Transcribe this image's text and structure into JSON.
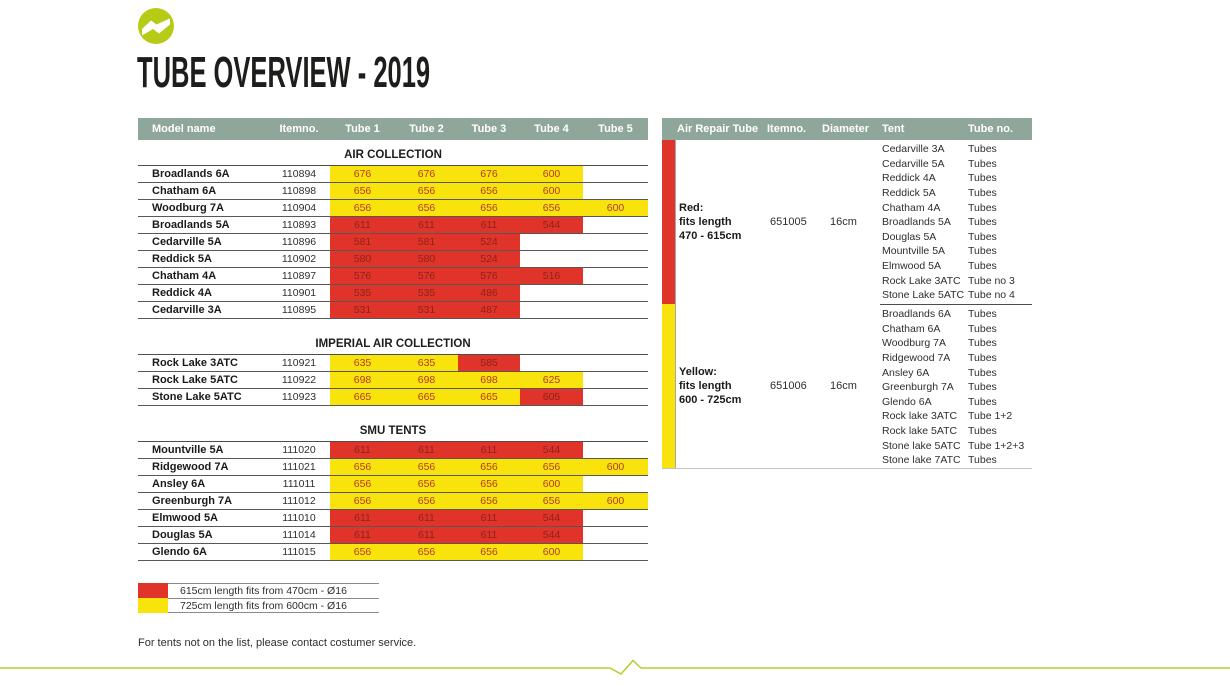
{
  "page": {
    "title": "TUBE OVERVIEW - 2019",
    "footer_note": "For tents not on the list, please contact costumer service."
  },
  "colors": {
    "header_bg": "#8fa79a",
    "yellow": "#f9e30c",
    "red": "#e0332a",
    "logo_lime": "#b5cb16",
    "divider_lime": "#b9cc33",
    "number_on_yellow": "#b23a2a",
    "number_on_red": "#8c241a"
  },
  "tube_table": {
    "headers": [
      "Model name",
      "Itemno.",
      "Tube 1",
      "Tube 2",
      "Tube 3",
      "Tube 4",
      "Tube 5"
    ],
    "sections": [
      {
        "name": "AIR COLLECTION",
        "rows": [
          {
            "model": "Broadlands 6A",
            "itemno": "110894",
            "tubes": [
              "676",
              "676",
              "676",
              "600",
              ""
            ],
            "cell_colors": [
              "y",
              "y",
              "y",
              "y",
              ""
            ]
          },
          {
            "model": "Chatham 6A",
            "itemno": "110898",
            "tubes": [
              "656",
              "656",
              "656",
              "600",
              ""
            ],
            "cell_colors": [
              "y",
              "y",
              "y",
              "y",
              ""
            ]
          },
          {
            "model": "Woodburg 7A",
            "itemno": "110904",
            "tubes": [
              "656",
              "656",
              "656",
              "656",
              "600"
            ],
            "cell_colors": [
              "y",
              "y",
              "y",
              "y",
              "y"
            ]
          },
          {
            "model": "Broadlands 5A",
            "itemno": "110893",
            "tubes": [
              "611",
              "611",
              "611",
              "544",
              ""
            ],
            "cell_colors": [
              "r",
              "r",
              "r",
              "r",
              ""
            ]
          },
          {
            "model": "Cedarville 5A",
            "itemno": "110896",
            "tubes": [
              "581",
              "581",
              "524",
              "",
              ""
            ],
            "cell_colors": [
              "r",
              "r",
              "r",
              "",
              ""
            ]
          },
          {
            "model": "Reddick 5A",
            "itemno": "110902",
            "tubes": [
              "580",
              "580",
              "524",
              "",
              ""
            ],
            "cell_colors": [
              "r",
              "r",
              "r",
              "",
              ""
            ]
          },
          {
            "model": "Chatham 4A",
            "itemno": "110897",
            "tubes": [
              "576",
              "576",
              "576",
              "516",
              ""
            ],
            "cell_colors": [
              "r",
              "r",
              "r",
              "r",
              ""
            ]
          },
          {
            "model": "Reddick 4A",
            "itemno": "110901",
            "tubes": [
              "535",
              "535",
              "486",
              "",
              ""
            ],
            "cell_colors": [
              "r",
              "r",
              "r",
              "",
              ""
            ]
          },
          {
            "model": "Cedarville 3A",
            "itemno": "110895",
            "tubes": [
              "531",
              "531",
              "487",
              "",
              ""
            ],
            "cell_colors": [
              "r",
              "r",
              "r",
              "",
              ""
            ]
          }
        ]
      },
      {
        "name": "IMPERIAL AIR COLLECTION",
        "rows": [
          {
            "model": "Rock Lake 3ATC",
            "itemno": "110921",
            "tubes": [
              "635",
              "635",
              "585",
              "",
              ""
            ],
            "cell_colors": [
              "y",
              "y",
              "r",
              "",
              ""
            ]
          },
          {
            "model": "Rock Lake 5ATC",
            "itemno": "110922",
            "tubes": [
              "698",
              "698",
              "698",
              "625",
              ""
            ],
            "cell_colors": [
              "y",
              "y",
              "y",
              "y",
              ""
            ]
          },
          {
            "model": "Stone Lake 5ATC",
            "itemno": "110923",
            "tubes": [
              "665",
              "665",
              "665",
              "605",
              ""
            ],
            "cell_colors": [
              "y",
              "y",
              "y",
              "r",
              ""
            ]
          }
        ]
      },
      {
        "name": "SMU TENTS",
        "rows": [
          {
            "model": "Mountville 5A",
            "itemno": "111020",
            "tubes": [
              "611",
              "611",
              "611",
              "544",
              ""
            ],
            "cell_colors": [
              "r",
              "r",
              "r",
              "r",
              ""
            ]
          },
          {
            "model": "Ridgewood 7A",
            "itemno": "111021",
            "tubes": [
              "656",
              "656",
              "656",
              "656",
              "600"
            ],
            "cell_colors": [
              "y",
              "y",
              "y",
              "y",
              "y"
            ]
          },
          {
            "model": "Ansley 6A",
            "itemno": "111011",
            "tubes": [
              "656",
              "656",
              "656",
              "600",
              ""
            ],
            "cell_colors": [
              "y",
              "y",
              "y",
              "y",
              ""
            ]
          },
          {
            "model": "Greenburgh 7A",
            "itemno": "111012",
            "tubes": [
              "656",
              "656",
              "656",
              "656",
              "600"
            ],
            "cell_colors": [
              "y",
              "y",
              "y",
              "y",
              "y"
            ]
          },
          {
            "model": "Elmwood 5A",
            "itemno": "111010",
            "tubes": [
              "611",
              "611",
              "611",
              "544",
              ""
            ],
            "cell_colors": [
              "r",
              "r",
              "r",
              "r",
              ""
            ]
          },
          {
            "model": "Douglas 5A",
            "itemno": "111014",
            "tubes": [
              "611",
              "611",
              "611",
              "544",
              ""
            ],
            "cell_colors": [
              "r",
              "r",
              "r",
              "r",
              ""
            ]
          },
          {
            "model": "Glendo 6A",
            "itemno": "111015",
            "tubes": [
              "656",
              "656",
              "656",
              "600",
              ""
            ],
            "cell_colors": [
              "y",
              "y",
              "y",
              "y",
              ""
            ]
          }
        ]
      }
    ]
  },
  "repair_table": {
    "headers": [
      "Air Repair Tube",
      "Itemno.",
      "Diameter",
      "Tent",
      "Tube no."
    ],
    "groups": [
      {
        "color": "red",
        "label": [
          "Red:",
          "fits length",
          "470 - 615cm"
        ],
        "itemno": "651005",
        "diameter": "16cm",
        "tents": [
          {
            "tent": "Cedarville 3A",
            "tube_no": "Tubes"
          },
          {
            "tent": "Cedarville 5A",
            "tube_no": "Tubes"
          },
          {
            "tent": "Reddick 4A",
            "tube_no": "Tubes"
          },
          {
            "tent": "Reddick 5A",
            "tube_no": "Tubes"
          },
          {
            "tent": "Chatham 4A",
            "tube_no": "Tubes"
          },
          {
            "tent": "Broadlands 5A",
            "tube_no": "Tubes"
          },
          {
            "tent": "Douglas 5A",
            "tube_no": "Tubes"
          },
          {
            "tent": "Mountville 5A",
            "tube_no": "Tubes"
          },
          {
            "tent": "Elmwood 5A",
            "tube_no": "Tubes"
          },
          {
            "tent": "Rock Lake 3ATC",
            "tube_no": "Tube no 3"
          },
          {
            "tent": "Stone Lake 5ATC",
            "tube_no": "Tube no 4"
          }
        ]
      },
      {
        "color": "yellow",
        "label": [
          "Yellow:",
          "fits length",
          "600 - 725cm"
        ],
        "itemno": "651006",
        "diameter": "16cm",
        "tents": [
          {
            "tent": "Broadlands 6A",
            "tube_no": "Tubes"
          },
          {
            "tent": "Chatham 6A",
            "tube_no": "Tubes"
          },
          {
            "tent": "Woodburg 7A",
            "tube_no": "Tubes"
          },
          {
            "tent": "Ridgewood 7A",
            "tube_no": "Tubes"
          },
          {
            "tent": "Ansley 6A",
            "tube_no": "Tubes"
          },
          {
            "tent": "Greenburgh 7A",
            "tube_no": "Tubes"
          },
          {
            "tent": "Glendo 6A",
            "tube_no": "Tubes"
          },
          {
            "tent": "Rock lake 3ATC",
            "tube_no": "Tube 1+2"
          },
          {
            "tent": "Rock lake 5ATC",
            "tube_no": "Tubes"
          },
          {
            "tent": "Stone lake 5ATC",
            "tube_no": "Tube 1+2+3"
          },
          {
            "tent": "Stone lake 7ATC",
            "tube_no": "Tubes"
          }
        ]
      }
    ]
  },
  "legend": {
    "items": [
      {
        "color": "red",
        "text": "615cm length fits from 470cm - Ø16"
      },
      {
        "color": "yellow",
        "text": "725cm length fits from 600cm - Ø16"
      }
    ]
  }
}
